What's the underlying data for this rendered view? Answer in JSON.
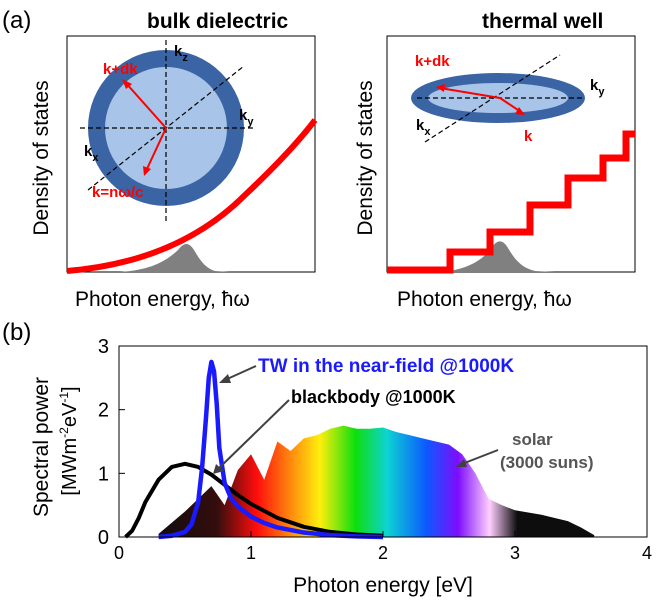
{
  "panel_a": {
    "label": "(a)",
    "left": {
      "title": "bulk dielectric",
      "ylabel": "Density of states",
      "xlabel": "Photon energy, ħω",
      "kz": "k",
      "kz_sub": "z",
      "ky": "k",
      "ky_sub": "y",
      "kx": "k",
      "kx_sub": "x",
      "k_plus_dk": "k+dk",
      "k_eq": "k=nω/c"
    },
    "right": {
      "title": "thermal well",
      "ylabel": "Density of states",
      "xlabel": "Photon  energy, ħω",
      "ky": "k",
      "ky_sub": "y",
      "kx": "k",
      "kx_sub": "x",
      "k_plus_dk": "k+dk",
      "k": "k"
    }
  },
  "panel_b": {
    "label": "(b)",
    "annotations": {
      "tw": "TW in the near-field @1000K",
      "bb": "blackbody @1000K",
      "solar1": "solar",
      "solar2": "(3000 suns)"
    },
    "ylabel_line1": "Spectral power",
    "ylabel_line2_a": "[MWm",
    "ylabel_line2_sup1": "-2",
    "ylabel_line2_b": "eV",
    "ylabel_line2_sup2": "-1",
    "ylabel_line2_c": "]"
  },
  "chart_data": {
    "type": "line",
    "xlabel": "Photon energy [eV]",
    "ylabel": "Spectral power [MWm-2eV-1]",
    "xlim": [
      0,
      4
    ],
    "ylim": [
      0,
      3
    ],
    "xticks": [
      "0",
      "1",
      "2",
      "3",
      "4"
    ],
    "yticks": [
      "0",
      "1",
      "2",
      "3"
    ],
    "series": [
      {
        "name": "TW in the near-field @1000K",
        "color": "#1a1aff",
        "x": [
          0.3,
          0.4,
          0.5,
          0.55,
          0.6,
          0.63,
          0.66,
          0.68,
          0.7,
          0.72,
          0.74,
          0.76,
          0.8,
          0.85,
          0.9,
          1.0,
          1.1,
          1.2,
          1.4,
          1.6,
          1.8,
          2.0
        ],
        "y": [
          0.0,
          0.02,
          0.08,
          0.2,
          0.55,
          1.1,
          1.9,
          2.5,
          2.75,
          2.6,
          2.1,
          1.4,
          0.85,
          0.6,
          0.48,
          0.32,
          0.22,
          0.15,
          0.07,
          0.03,
          0.01,
          0.0
        ]
      },
      {
        "name": "blackbody @1000K",
        "color": "#000000",
        "x": [
          0.05,
          0.1,
          0.15,
          0.2,
          0.3,
          0.4,
          0.5,
          0.6,
          0.7,
          0.8,
          0.9,
          1.0,
          1.2,
          1.4,
          1.6,
          1.8,
          2.0
        ],
        "y": [
          0.0,
          0.1,
          0.3,
          0.55,
          0.9,
          1.1,
          1.15,
          1.1,
          0.98,
          0.82,
          0.66,
          0.52,
          0.3,
          0.16,
          0.08,
          0.04,
          0.02
        ]
      },
      {
        "name": "solar (3000 suns)",
        "x": [
          0.3,
          0.5,
          0.7,
          0.8,
          0.9,
          1.0,
          1.1,
          1.2,
          1.3,
          1.4,
          1.5,
          1.6,
          1.7,
          1.8,
          1.9,
          2.0,
          2.1,
          2.2,
          2.3,
          2.4,
          2.5,
          2.6,
          2.7,
          2.8,
          2.9,
          3.0,
          3.2,
          3.4,
          3.5,
          3.6
        ],
        "y": [
          0.05,
          0.4,
          0.8,
          0.5,
          1.05,
          1.3,
          0.9,
          1.5,
          1.35,
          1.55,
          1.6,
          1.7,
          1.75,
          1.7,
          1.7,
          1.72,
          1.65,
          1.6,
          1.55,
          1.5,
          1.45,
          1.3,
          1.0,
          0.6,
          0.5,
          0.42,
          0.35,
          0.25,
          0.15,
          0.03
        ]
      }
    ]
  }
}
